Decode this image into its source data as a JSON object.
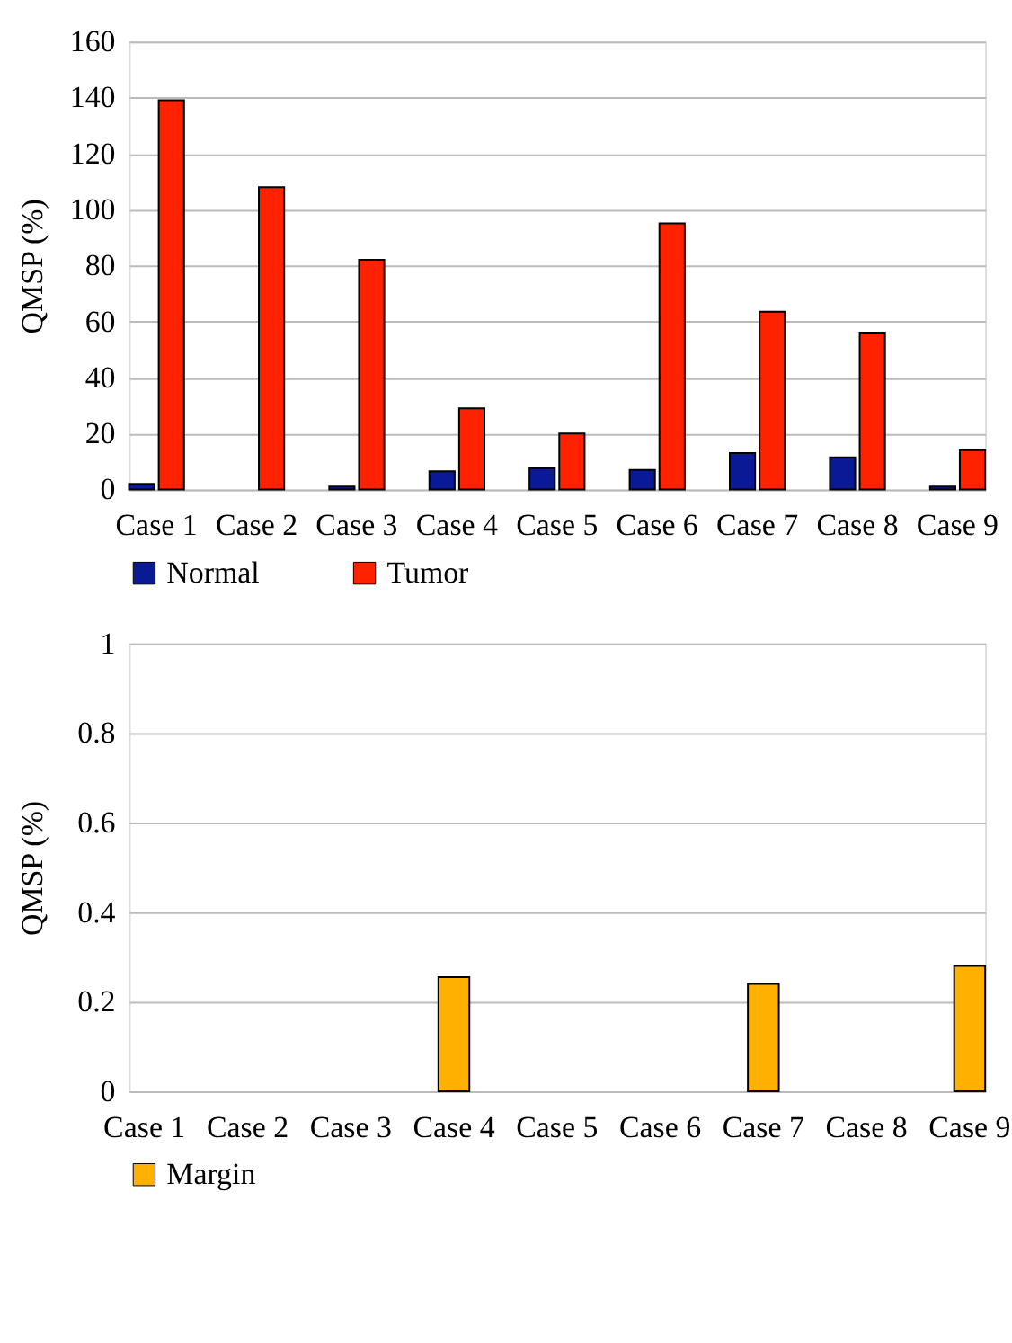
{
  "chart_data": [
    {
      "type": "bar",
      "ylabel": "QMSP (%)",
      "categories": [
        "Case 1",
        "Case 2",
        "Case 3",
        "Case 4",
        "Case 5",
        "Case 6",
        "Case 7",
        "Case 8",
        "Case 9"
      ],
      "series": [
        {
          "name": "Normal",
          "color": "#0a1a96",
          "values": [
            2,
            null,
            1,
            6.5,
            7.5,
            7,
            13,
            11.5,
            1
          ]
        },
        {
          "name": "Tumor",
          "color": "#ff2200",
          "values": [
            139,
            108,
            82,
            29,
            20,
            95,
            63.5,
            56,
            14
          ]
        }
      ],
      "ylim": [
        0,
        160
      ],
      "yticks": [
        0,
        20,
        40,
        60,
        80,
        100,
        120,
        140,
        160
      ],
      "grid": "y",
      "legend": "bottom"
    },
    {
      "type": "bar",
      "ylabel": "QMSP (%)",
      "categories": [
        "Case 1",
        "Case 2",
        "Case 3",
        "Case 4",
        "Case 5",
        "Case 6",
        "Case 7",
        "Case 8",
        "Case 9"
      ],
      "series": [
        {
          "name": "Margin",
          "color": "#ffb000",
          "values": [
            null,
            null,
            null,
            0.255,
            null,
            null,
            0.24,
            null,
            0.28
          ]
        }
      ],
      "ylim": [
        0,
        1
      ],
      "yticks": [
        0,
        0.2,
        0.4,
        0.6,
        0.8,
        1
      ],
      "grid": "y",
      "legend": "bottom"
    }
  ]
}
